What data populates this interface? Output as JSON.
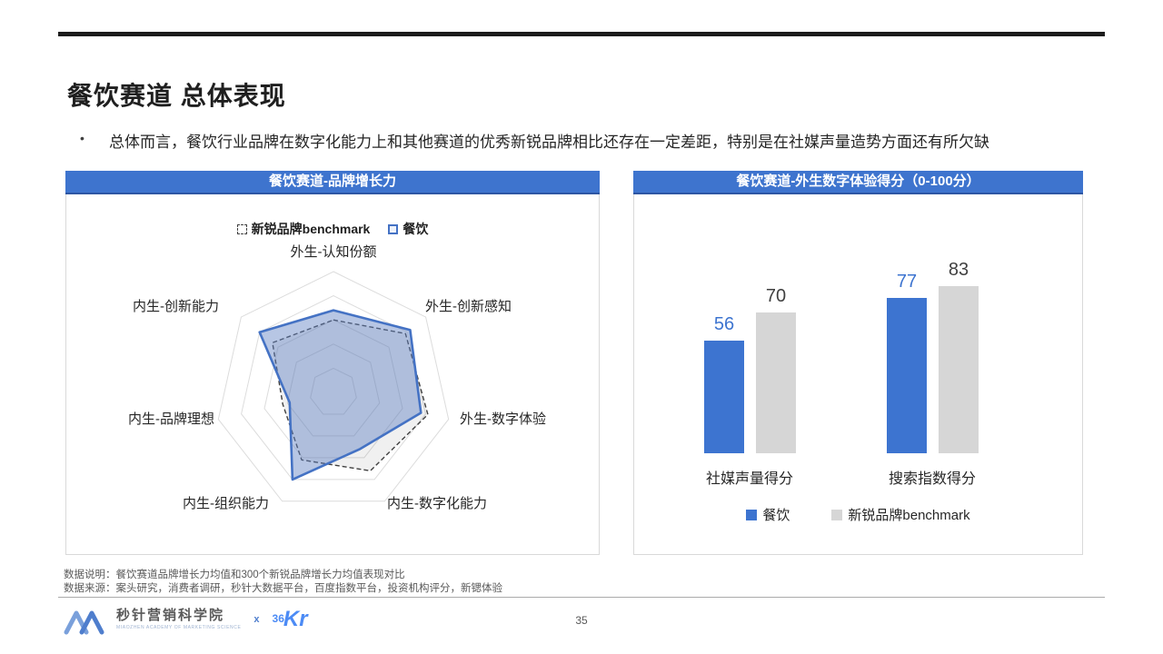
{
  "slide": {
    "title": "餐饮赛道 总体表现",
    "bullet_marker": "•",
    "bullet": "总体而言，餐饮行业品牌在数字化能力上和其他赛道的优秀新锐品牌相比还存在一定差距，特别是在社媒声量造势方面还有所欠缺",
    "page_number": "35"
  },
  "chart_data": [
    {
      "type": "radar",
      "title": "餐饮赛道-品牌增长力",
      "categories": [
        "外生-认知份额",
        "外生-创新感知",
        "外生-数字体验",
        "内生-数字化能力",
        "内生-组织能力",
        "内生-品牌理想",
        "内生-创新能力"
      ],
      "series": [
        {
          "name": "新锐品牌benchmark",
          "style": "dashed",
          "color": "#404040",
          "values": [
            60,
            78,
            82,
            72,
            62,
            44,
            66
          ]
        },
        {
          "name": "餐饮",
          "style": "solid",
          "color": "#4472C4",
          "values": [
            68,
            83,
            76,
            52,
            80,
            38,
            80
          ]
        }
      ],
      "rmax": 100,
      "rings": 5,
      "grid": true,
      "legend_position": "top"
    },
    {
      "type": "bar",
      "title": "餐饮赛道-外生数字体验得分（0-100分）",
      "categories": [
        "社媒声量得分",
        "搜索指数得分"
      ],
      "series": [
        {
          "name": "餐饮",
          "color": "#3D74D0",
          "values": [
            56,
            77
          ]
        },
        {
          "name": "新锐品牌benchmark",
          "color": "#D6D6D6",
          "values": [
            70,
            83
          ]
        }
      ],
      "ylim": [
        0,
        100
      ],
      "grid": false,
      "data_labels": true,
      "legend_position": "bottom"
    }
  ],
  "footnotes": {
    "line1": "数据说明：餐饮赛道品牌增长力均值和300个新锐品牌增长力均值表现对比",
    "line2": "数据来源：案头研究，消费者调研，秒针大数据平台，百度指数平台，投资机构评分，新锶体验"
  },
  "footer": {
    "brand_cn": "秒针营销科学院",
    "brand_en": "MIAOZHEN ACADEMY OF MARKETING SCIENCE",
    "separator": "x",
    "partner_36": "36",
    "partner_kr": "Kr"
  },
  "colors": {
    "header_blue": "#3E74CE",
    "header_blue_dark": "#2E56A3",
    "accent_blue": "#3D74D0",
    "radar_blue": "#4472C4",
    "benchmark_gray": "#D6D6D6",
    "benchmark_line": "#404040",
    "grid_gray": "#DCDCDC",
    "footnote_gray": "#595959",
    "kr_blue": "#4C8BF5",
    "top_rule_black": "#1C1C1C"
  }
}
